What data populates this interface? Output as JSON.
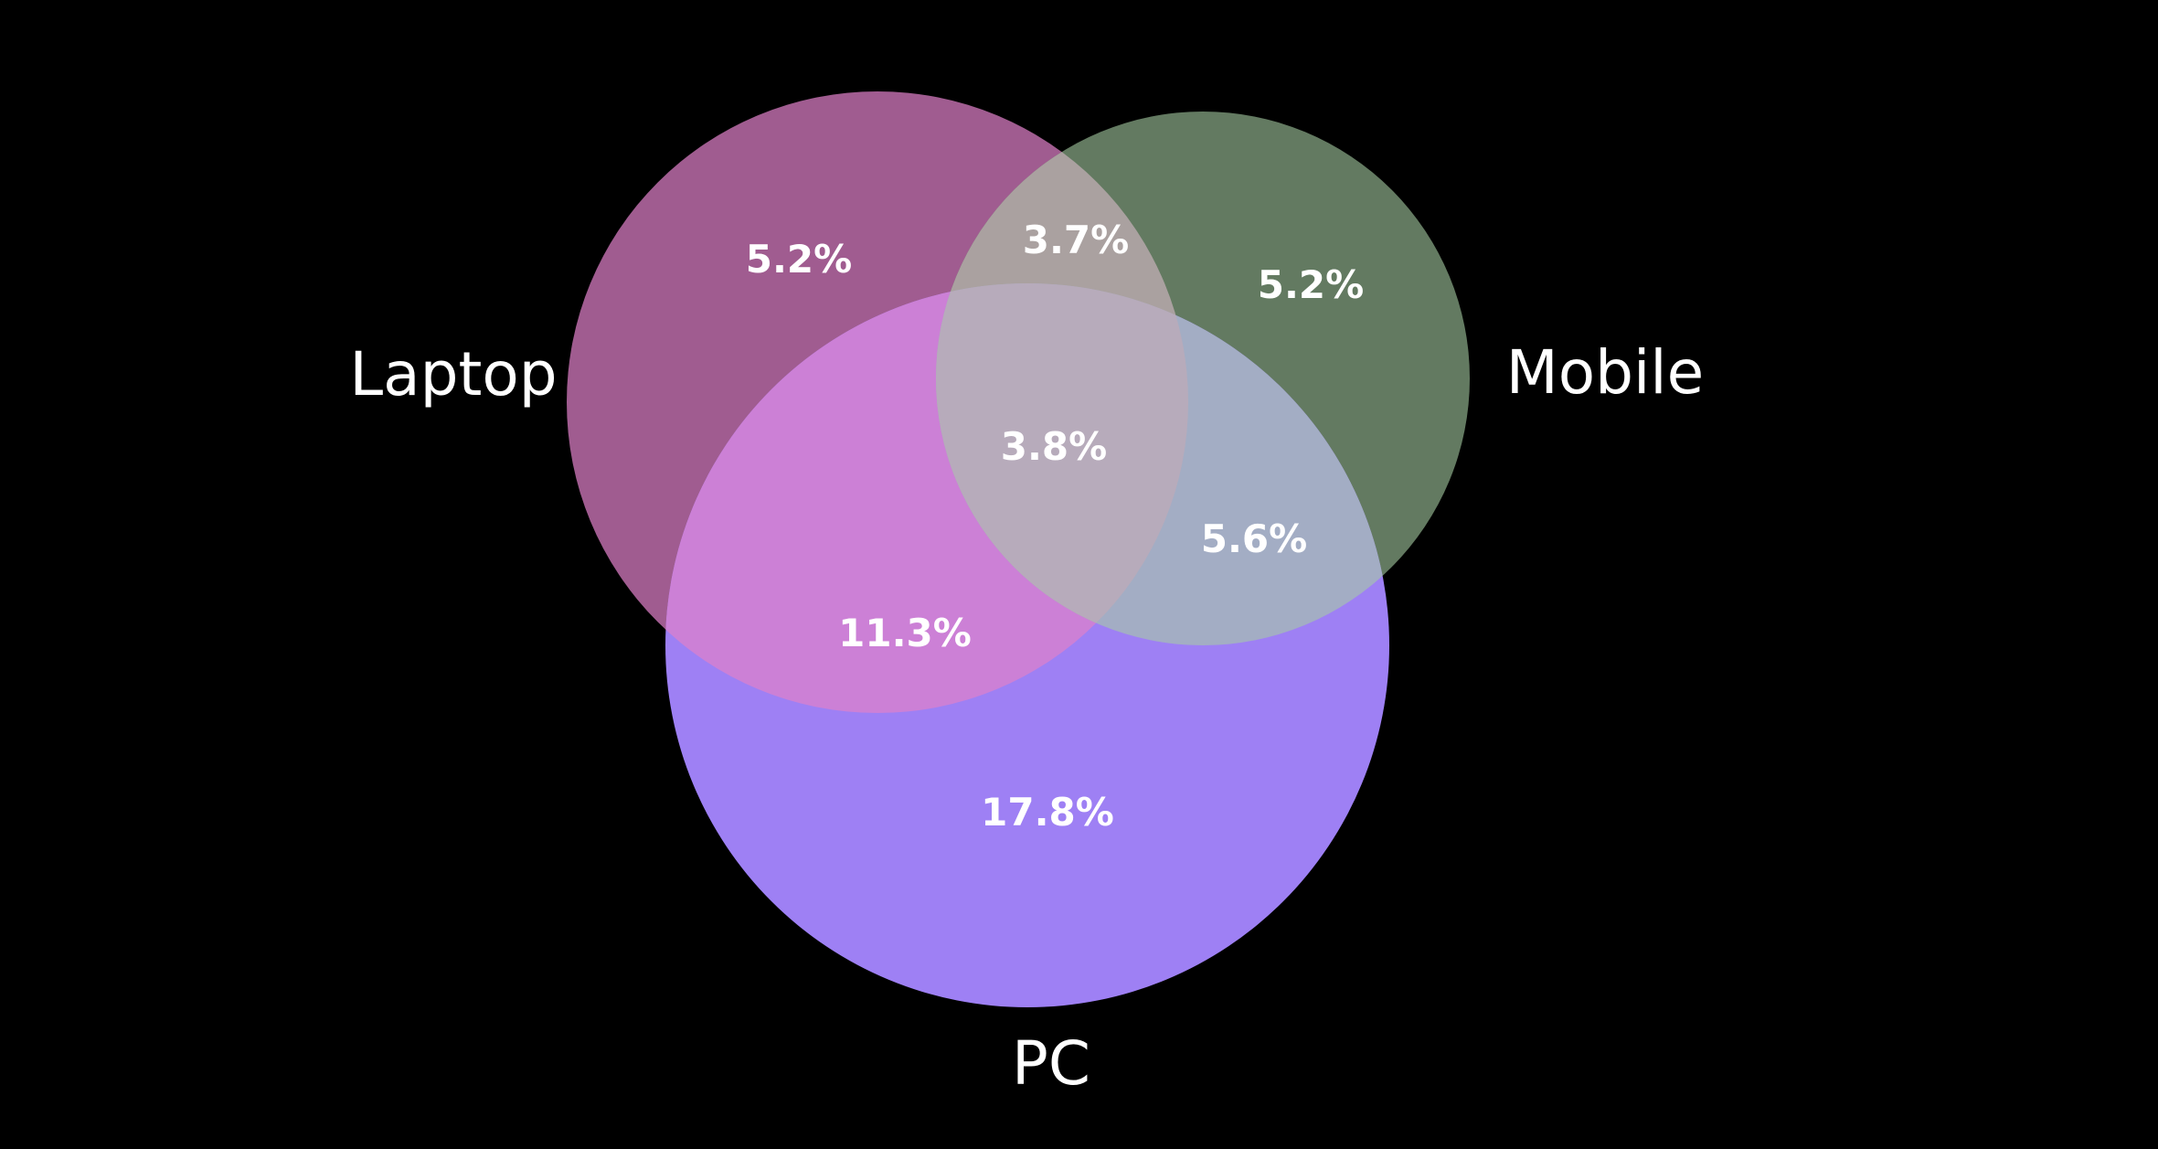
{
  "sets": [
    {
      "id": "laptop",
      "label": "Laptop",
      "color": "#a05c90"
    },
    {
      "id": "mobile",
      "label": "Mobile",
      "color": "#637a61"
    },
    {
      "id": "pc",
      "label": "PC",
      "color": "#9e80f4"
    }
  ],
  "regions": {
    "laptop_only": "5.2%",
    "mobile_only": "5.2%",
    "pc_only": "17.8%",
    "laptop_mobile": "3.7%",
    "laptop_pc": "11.3%",
    "mobile_pc": "5.6%",
    "all_three": "3.8%"
  },
  "colors": {
    "background": "#000000",
    "laptop_pc_overlap": "#cc80d6",
    "laptop_mobile_overlap": "#aaa1a0",
    "mobile_pc_overlap": "#a3adc4",
    "center_overlap": "#b7abbb",
    "text": "#ffffff"
  }
}
